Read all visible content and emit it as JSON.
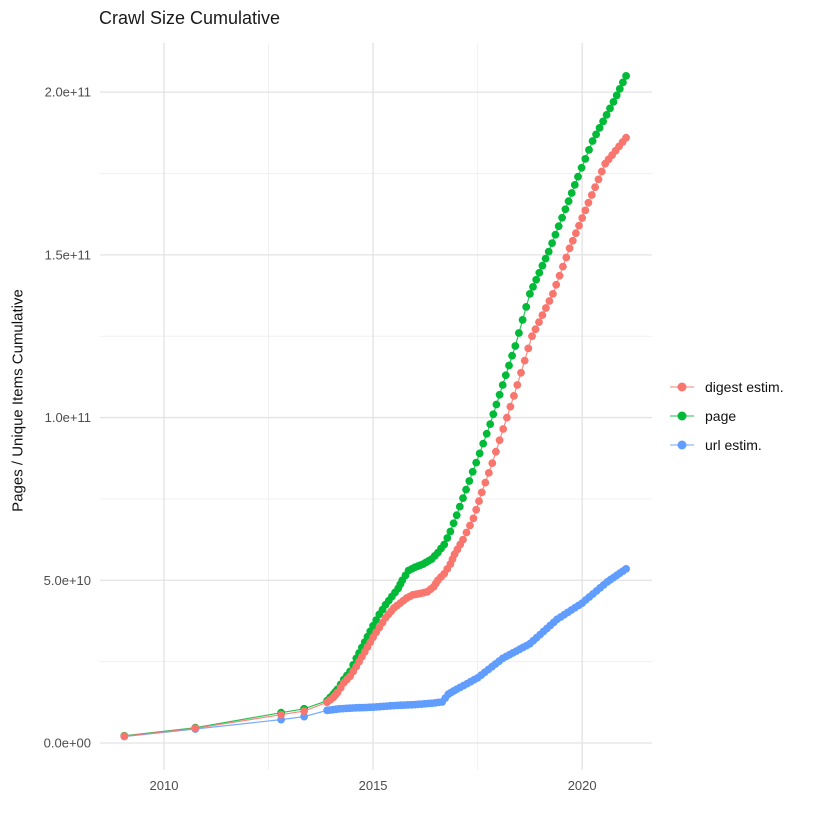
{
  "title": "Crawl Size Cumulative",
  "axes": {
    "y_label": "Pages / Unique Items Cumulative",
    "x_ticks": [
      {
        "value": 2010,
        "label": "2010"
      },
      {
        "value": 2015,
        "label": "2015"
      },
      {
        "value": 2020,
        "label": "2020"
      }
    ],
    "x_minor": [
      2012.5,
      2017.5
    ],
    "y_ticks": [
      {
        "value": 0.0,
        "label": "0.0e+00"
      },
      {
        "value": 50000000000.0,
        "label": "5.0e+10"
      },
      {
        "value": 100000000000.0,
        "label": "1.0e+11"
      },
      {
        "value": 150000000000.0,
        "label": "1.5e+11"
      },
      {
        "value": 200000000000.0,
        "label": "2.0e+11"
      }
    ],
    "y_minor": [
      25000000000.0,
      75000000000.0,
      125000000000.0,
      175000000000.0
    ],
    "x_range": [
      2008.47,
      2021.67
    ],
    "y_range": [
      -8300000000.0,
      215100000000.0
    ]
  },
  "colors": {
    "grid_major": "#e3e3e3",
    "grid_minor": "#f0f0f0",
    "tick_text": "#4d4d4d",
    "title_text": "#1a1a1a"
  },
  "legend": {
    "items": [
      {
        "label": "digest estim.",
        "color": "#F8766D"
      },
      {
        "label": "page",
        "color": "#00BA38"
      },
      {
        "label": "url estim.",
        "color": "#619CFF"
      }
    ]
  },
  "chart_data": {
    "type": "line",
    "title": "Crawl Size Cumulative",
    "xlabel": "",
    "ylabel": "Pages / Unique Items Cumulative",
    "legend_position": "right",
    "grid": true,
    "marker": "point",
    "dense_from": 2013.85,
    "point_interval_years": 0.09,
    "draw_order": [
      1,
      2,
      0
    ],
    "series": [
      {
        "name": "digest estim.",
        "color": "#F8766D",
        "points": [
          [
            2009.05,
            2100000000.0
          ],
          [
            2010.75,
            4500000000.0
          ],
          [
            2012.8,
            8700000000.0
          ],
          [
            2013.35,
            9800000000.0
          ],
          [
            2013.9,
            12500000000.0
          ],
          [
            2014.05,
            14000000000.0
          ],
          [
            2014.15,
            15500000000.0
          ],
          [
            2014.3,
            18500000000.0
          ],
          [
            2014.45,
            20500000000.0
          ],
          [
            2014.6,
            23500000000.0
          ],
          [
            2014.8,
            28000000000.0
          ],
          [
            2015.0,
            32500000000.0
          ],
          [
            2015.15,
            35500000000.0
          ],
          [
            2015.3,
            38500000000.0
          ],
          [
            2015.5,
            41500000000.0
          ],
          [
            2015.65,
            43000000000.0
          ],
          [
            2015.8,
            44500000000.0
          ],
          [
            2015.95,
            45500000000.0
          ],
          [
            2016.15,
            46000000000.0
          ],
          [
            2016.3,
            46500000000.0
          ],
          [
            2016.45,
            48000000000.0
          ],
          [
            2016.55,
            50000000000.0
          ],
          [
            2016.7,
            52000000000.0
          ],
          [
            2016.85,
            55000000000.0
          ],
          [
            2016.95,
            58000000000.0
          ],
          [
            2017.15,
            62500000000.0
          ],
          [
            2017.4,
            69000000000.0
          ],
          [
            2017.6,
            77000000000.0
          ],
          [
            2017.85,
            86000000000.0
          ],
          [
            2018.2,
            100000000000.0
          ],
          [
            2018.45,
            110000000000.0
          ],
          [
            2018.8,
            125000000000.0
          ],
          [
            2019.3,
            138000000000.0
          ],
          [
            2019.7,
            152000000000.0
          ],
          [
            2020.15,
            166000000000.0
          ],
          [
            2020.55,
            178000000000.0
          ],
          [
            2021.05,
            186000000000.0
          ]
        ]
      },
      {
        "name": "page",
        "color": "#00BA38",
        "points": [
          [
            2009.05,
            2200000000.0
          ],
          [
            2010.75,
            4700000000.0
          ],
          [
            2012.8,
            9300000000.0
          ],
          [
            2013.35,
            10500000000.0
          ],
          [
            2013.9,
            13000000000.0
          ],
          [
            2014.05,
            15000000000.0
          ],
          [
            2014.15,
            16500000000.0
          ],
          [
            2014.3,
            19500000000.0
          ],
          [
            2014.45,
            22000000000.0
          ],
          [
            2014.6,
            26000000000.0
          ],
          [
            2014.8,
            31000000000.0
          ],
          [
            2015.0,
            36000000000.0
          ],
          [
            2015.15,
            39500000000.0
          ],
          [
            2015.3,
            42500000000.0
          ],
          [
            2015.45,
            45000000000.0
          ],
          [
            2015.6,
            47500000000.0
          ],
          [
            2015.7,
            50000000000.0
          ],
          [
            2015.85,
            53000000000.0
          ],
          [
            2016.0,
            54000000000.0
          ],
          [
            2016.2,
            55000000000.0
          ],
          [
            2016.4,
            56500000000.0
          ],
          [
            2016.55,
            58500000000.0
          ],
          [
            2016.7,
            61000000000.0
          ],
          [
            2016.85,
            65000000000.0
          ],
          [
            2017.0,
            70000000000.0
          ],
          [
            2017.3,
            80500000000.0
          ],
          [
            2017.55,
            89000000000.0
          ],
          [
            2017.8,
            98000000000.0
          ],
          [
            2018.1,
            110000000000.0
          ],
          [
            2018.4,
            122000000000.0
          ],
          [
            2018.75,
            138000000000.0
          ],
          [
            2019.2,
            151000000000.0
          ],
          [
            2019.6,
            164000000000.0
          ],
          [
            2019.9,
            174000000000.0
          ],
          [
            2020.25,
            185000000000.0
          ],
          [
            2020.5,
            191000000000.0
          ],
          [
            2020.75,
            197000000000.0
          ],
          [
            2021.05,
            205000000000.0
          ]
        ]
      },
      {
        "name": "url estim.",
        "color": "#619CFF",
        "points": [
          [
            2009.05,
            2000000000.0
          ],
          [
            2010.75,
            4300000000.0
          ],
          [
            2012.8,
            7200000000.0
          ],
          [
            2013.35,
            8100000000.0
          ],
          [
            2013.9,
            10000000000.0
          ],
          [
            2014.2,
            10500000000.0
          ],
          [
            2014.6,
            10800000000.0
          ],
          [
            2015.0,
            11000000000.0
          ],
          [
            2015.5,
            11500000000.0
          ],
          [
            2016.0,
            11800000000.0
          ],
          [
            2016.4,
            12200000000.0
          ],
          [
            2016.65,
            12600000000.0
          ],
          [
            2016.8,
            15000000000.0
          ],
          [
            2017.0,
            16500000000.0
          ],
          [
            2017.5,
            20000000000.0
          ],
          [
            2018.1,
            26000000000.0
          ],
          [
            2018.75,
            30500000000.0
          ],
          [
            2019.4,
            38000000000.0
          ],
          [
            2020.0,
            43000000000.0
          ],
          [
            2020.6,
            49500000000.0
          ],
          [
            2021.05,
            53500000000.0
          ]
        ]
      }
    ]
  }
}
